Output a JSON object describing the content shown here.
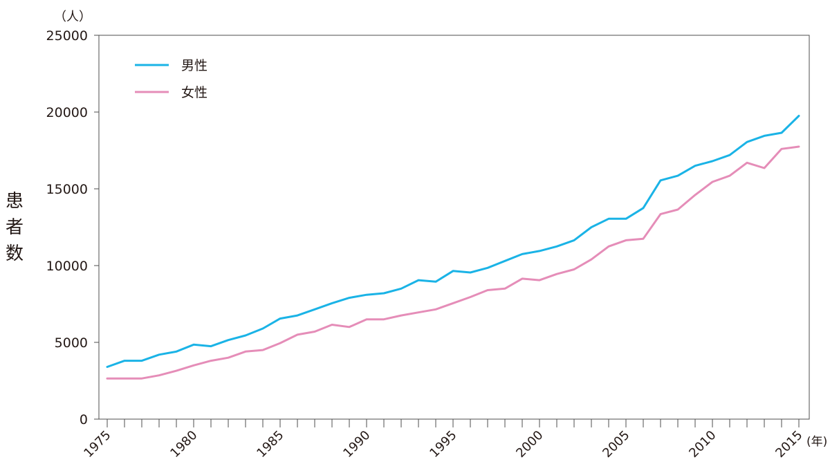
{
  "chart_data": {
    "type": "line",
    "ylabel": "患者数",
    "y_unit": "（人）",
    "x_unit": "(年)",
    "ylim": [
      0,
      25000
    ],
    "xlim": [
      1975,
      2015
    ],
    "yticks": [
      0,
      5000,
      10000,
      15000,
      20000,
      25000
    ],
    "xtick_labels": [
      1975,
      1980,
      1985,
      1990,
      1995,
      2000,
      2005,
      2010,
      2015
    ],
    "grid": false,
    "legend_position": "top-left",
    "x": [
      1975,
      1976,
      1977,
      1978,
      1979,
      1980,
      1981,
      1982,
      1983,
      1984,
      1985,
      1986,
      1987,
      1988,
      1989,
      1990,
      1991,
      1992,
      1993,
      1994,
      1995,
      1996,
      1997,
      1998,
      1999,
      2000,
      2001,
      2002,
      2003,
      2004,
      2005,
      2006,
      2007,
      2008,
      2009,
      2010,
      2011,
      2012,
      2013,
      2014,
      2015
    ],
    "series": [
      {
        "name": "男性",
        "color": "#1ab3e6",
        "values": [
          3400,
          3800,
          3800,
          4200,
          4400,
          4850,
          4750,
          5150,
          5450,
          5900,
          6550,
          6750,
          7150,
          7550,
          7900,
          8100,
          8200,
          8500,
          9050,
          8950,
          9650,
          9550,
          9850,
          10300,
          10750,
          10950,
          11250,
          11650,
          12500,
          13050,
          13050,
          13750,
          15550,
          15850,
          16500,
          16800,
          17200,
          18050,
          18450,
          18650,
          19750
        ]
      },
      {
        "name": "女性",
        "color": "#e58db8",
        "values": [
          2650,
          2650,
          2650,
          2850,
          3150,
          3500,
          3800,
          4000,
          4400,
          4500,
          4950,
          5500,
          5700,
          6150,
          6000,
          6500,
          6500,
          6750,
          6950,
          7150,
          7550,
          7950,
          8400,
          8500,
          9150,
          9050,
          9450,
          9750,
          10400,
          11250,
          11650,
          11750,
          13350,
          13650,
          14600,
          15450,
          15850,
          16700,
          16350,
          17600,
          17750
        ]
      }
    ]
  }
}
